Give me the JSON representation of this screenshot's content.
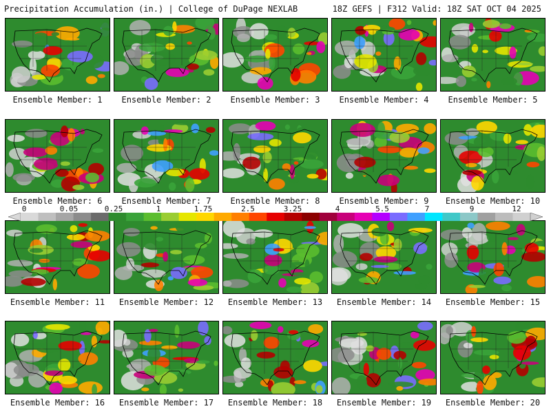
{
  "header": {
    "left": "Precipitation Accumulation (in.) | College of DuPage NEXLAB",
    "right": "18Z GEFS | F312 Valid: 18Z SAT OCT 04 2025"
  },
  "colorbar": {
    "labels": [
      "0",
      "0.05",
      "0.25",
      "1",
      "1.75",
      "2.5",
      "3.25",
      "4",
      "5.5",
      "7",
      "9",
      "12"
    ],
    "colors": [
      "#d9d9d9",
      "#bfbfbf",
      "#a6a6a6",
      "#8c8c8c",
      "#6b6b6b",
      "#2e8b2e",
      "#3aa33a",
      "#5bbd2f",
      "#9acd32",
      "#e6e600",
      "#ffd700",
      "#ffaa00",
      "#ff7f00",
      "#ff4500",
      "#e60000",
      "#b40000",
      "#8b0000",
      "#a0003c",
      "#c8007a",
      "#e600b4",
      "#b400ff",
      "#7a6cff",
      "#3fa0ff",
      "#00e6ff",
      "#40c8c8",
      "#8cc8c8",
      "#a0a0a0",
      "#bcbcbc",
      "#d0d0d0"
    ]
  },
  "panels": [
    {
      "caption": "Ensemble Member: 1"
    },
    {
      "caption": "Ensemble Member: 2"
    },
    {
      "caption": "Ensemble Member: 3"
    },
    {
      "caption": "Ensemble Member: 4"
    },
    {
      "caption": "Ensemble Member: 5"
    },
    {
      "caption": "Ensemble Member: 6"
    },
    {
      "caption": "Ensemble Member: 7"
    },
    {
      "caption": "Ensemble Member: 8"
    },
    {
      "caption": "Ensemble Member: 9"
    },
    {
      "caption": "Ensemble Member: 10"
    },
    {
      "caption": "Ensemble Member: 11"
    },
    {
      "caption": "Ensemble Member: 12"
    },
    {
      "caption": "Ensemble Member: 13"
    },
    {
      "caption": "Ensemble Member: 14"
    },
    {
      "caption": "Ensemble Member: 15"
    },
    {
      "caption": "Ensemble Member: 16"
    },
    {
      "caption": "Ensemble Member: 17"
    },
    {
      "caption": "Ensemble Member: 18"
    },
    {
      "caption": "Ensemble Member: 19"
    },
    {
      "caption": "Ensemble Member: 20"
    }
  ]
}
